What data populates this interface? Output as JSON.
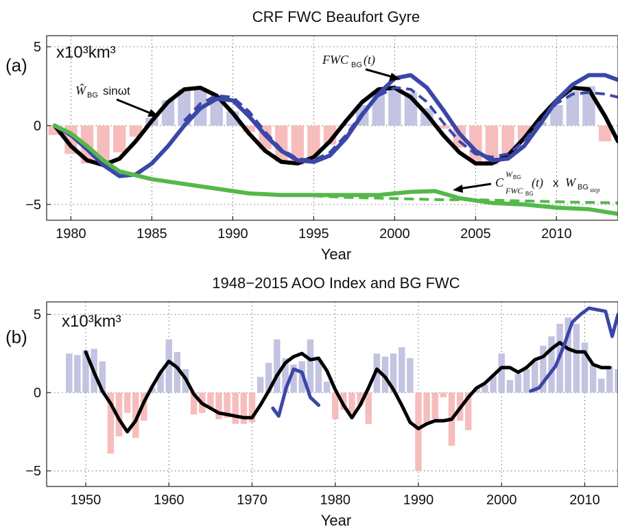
{
  "chart_data": [
    {
      "type": "line",
      "title": "CRF FWC Beaufort Gyre",
      "panel_label": "(a)",
      "unit_label": "x10³km³",
      "xlabel": "Year",
      "ylabel": "",
      "xlim": [
        1978.5,
        2013.8
      ],
      "ylim": [
        -6.0,
        5.7
      ],
      "xticks": [
        1980,
        1985,
        1990,
        1995,
        2000,
        2005,
        2010
      ],
      "yticks": [
        -5,
        0,
        5
      ],
      "grid": "dotted",
      "annotations": {
        "fwc": "FWC",
        "fwc_sub": "BG",
        "fwc_arg": "(t)",
        "sine_hat": "Ŵ",
        "sine_sub": "BG",
        "sine_fn": "sinωt",
        "crf_c": "C",
        "crf_sup_w": "W",
        "crf_sup_sub": "BG",
        "crf_sub": "FWC",
        "crf_sub_sub": "BG",
        "crf_arg": "(t)",
        "crf_times": "x",
        "crf_w": "W",
        "crf_w_sub": "BG",
        "crf_w_subsub": "step"
      },
      "bars": {
        "x": [
          1979,
          1980,
          1981,
          1982,
          1983,
          1984,
          1985,
          1986,
          1987,
          1988,
          1989,
          1990,
          1991,
          1992,
          1993,
          1994,
          1995,
          1996,
          1997,
          1998,
          1999,
          2000,
          2001,
          2002,
          2003,
          2004,
          2005,
          2006,
          2007,
          2008,
          2009,
          2010,
          2011,
          2012,
          2013
        ],
        "values": [
          -0.6,
          -1.8,
          -2.4,
          -2.4,
          -1.7,
          -0.7,
          0.5,
          1.6,
          2.3,
          2.4,
          1.9,
          0.9,
          -0.4,
          -1.5,
          -2.3,
          -2.5,
          -2.1,
          -1.2,
          0.1,
          1.3,
          2.2,
          2.5,
          2.1,
          1.1,
          -0.2,
          -1.4,
          -2.3,
          -2.5,
          -2.0,
          -1.1,
          0.2,
          1.3,
          2.2,
          2.5,
          -1.0
        ],
        "positive_color": "#c3c3e2",
        "negative_color": "#f7bdbd"
      },
      "series": [
        {
          "name": "sine",
          "color": "#000000",
          "style": "solid",
          "x": [
            1979,
            1980,
            1981,
            1982,
            1983,
            1984,
            1985,
            1986,
            1987,
            1988,
            1989,
            1990,
            1991,
            1992,
            1993,
            1994,
            1995,
            1996,
            1997,
            1998,
            1999,
            2000,
            2001,
            2002,
            2003,
            2004,
            2005,
            2006,
            2007,
            2008,
            2009,
            2010,
            2011,
            2012,
            2013,
            2013.8
          ],
          "values": [
            0,
            -1.3,
            -2.2,
            -2.5,
            -2.1,
            -1.0,
            0.3,
            1.5,
            2.3,
            2.4,
            1.9,
            0.8,
            -0.5,
            -1.6,
            -2.3,
            -2.4,
            -2.0,
            -1.0,
            0.3,
            1.5,
            2.3,
            2.4,
            1.8,
            0.7,
            -0.6,
            -1.7,
            -2.4,
            -2.4,
            -1.9,
            -0.8,
            0.5,
            1.6,
            2.4,
            2.3,
            0.6,
            -1.0
          ]
        },
        {
          "name": "FWC solid",
          "color": "#3a47a8",
          "style": "solid",
          "x": [
            1979,
            1980,
            1981,
            1982,
            1983,
            1984,
            1985,
            1986,
            1987,
            1988,
            1989,
            1990,
            1991,
            1992,
            1993,
            1994,
            1995,
            1996,
            1997,
            1998,
            1999,
            2000,
            2001,
            2002,
            2003,
            2004,
            2005,
            2006,
            2007,
            2008,
            2009,
            2010,
            2011,
            2012,
            2013,
            2013.8
          ],
          "values": [
            0,
            -0.6,
            -1.5,
            -2.5,
            -3.2,
            -3.1,
            -2.4,
            -1.3,
            0.0,
            1.1,
            1.7,
            1.6,
            0.6,
            -0.6,
            -1.6,
            -2.2,
            -2.3,
            -1.9,
            -0.8,
            0.7,
            2.0,
            3.0,
            3.2,
            2.4,
            1.0,
            -0.5,
            -1.6,
            -2.2,
            -2.1,
            -1.3,
            0.1,
            1.6,
            2.6,
            3.2,
            3.2,
            2.9
          ],
          "width": 6
        },
        {
          "name": "FWC dashed",
          "color": "#3a47a8",
          "style": "dashed",
          "x": [
            1987,
            1988,
            1989,
            1990,
            1991,
            1992,
            1993,
            1994,
            1995,
            1996,
            1997,
            1998,
            1999,
            2000,
            2001,
            2002,
            2003,
            2004,
            2005,
            2006,
            2007,
            2008,
            2009,
            2010,
            2011,
            2012,
            2013,
            2013.8
          ],
          "values": [
            0.3,
            1.4,
            1.9,
            1.8,
            0.9,
            -0.4,
            -1.5,
            -2.1,
            -2.2,
            -1.7,
            -0.6,
            0.8,
            1.9,
            2.4,
            2.3,
            1.5,
            0.2,
            -1.0,
            -1.8,
            -2.0,
            -1.8,
            -1.0,
            0.3,
            1.4,
            2.0,
            2.1,
            2.0,
            1.8
          ],
          "width": 4
        },
        {
          "name": "CRF solid",
          "color": "#55b84a",
          "style": "solid",
          "x": [
            1979,
            1980,
            1981,
            1982,
            1983,
            1985,
            1987,
            1989,
            1991,
            1993,
            1995,
            1997,
            1999,
            2001,
            2002.5,
            2004,
            2006,
            2008,
            2010,
            2012,
            2013.8
          ],
          "values": [
            0,
            -0.5,
            -1.3,
            -2.2,
            -2.9,
            -3.4,
            -3.7,
            -4.0,
            -4.3,
            -4.4,
            -4.4,
            -4.4,
            -4.4,
            -4.2,
            -4.15,
            -4.6,
            -4.9,
            -5.0,
            -5.2,
            -5.3,
            -5.6
          ],
          "width": 6
        },
        {
          "name": "CRF dashed",
          "color": "#55b84a",
          "style": "dashed",
          "x": [
            1995,
            1997,
            1999,
            2001,
            2003,
            2005,
            2007,
            2009,
            2011,
            2013.8
          ],
          "values": [
            -4.45,
            -4.55,
            -4.6,
            -4.65,
            -4.7,
            -4.7,
            -4.75,
            -4.8,
            -4.85,
            -4.9
          ],
          "width": 4
        }
      ]
    },
    {
      "type": "line",
      "title": "1948−2015 AOO Index and BG FWC",
      "panel_label": "(b)",
      "unit_label": "x10³km³",
      "xlabel": "Year",
      "ylabel": "",
      "xlim": [
        1945.3,
        2014
      ],
      "ylim": [
        -6.0,
        5.8
      ],
      "xticks": [
        1950,
        1960,
        1970,
        1980,
        1990,
        2000,
        2010
      ],
      "yticks": [
        -5,
        0,
        5
      ],
      "grid": "dotted",
      "bars": {
        "x": [
          1948,
          1949,
          1950,
          1951,
          1952,
          1953,
          1954,
          1955,
          1956,
          1957,
          1958,
          1959,
          1960,
          1961,
          1962,
          1963,
          1964,
          1965,
          1966,
          1967,
          1968,
          1969,
          1970,
          1971,
          1972,
          1973,
          1974,
          1975,
          1976,
          1977,
          1978,
          1979,
          1980,
          1981,
          1982,
          1983,
          1984,
          1985,
          1986,
          1987,
          1988,
          1989,
          1990,
          1991,
          1992,
          1993,
          1994,
          1995,
          1996,
          1997,
          1998,
          1999,
          2000,
          2001,
          2002,
          2003,
          2004,
          2005,
          2006,
          2007,
          2008,
          2009,
          2010,
          2011,
          2012,
          2013,
          2014
        ],
        "values": [
          2.5,
          2.4,
          2.7,
          2.8,
          2.0,
          -3.9,
          -2.8,
          -1.3,
          -2.9,
          -1.8,
          0.3,
          1.3,
          3.4,
          2.6,
          1.5,
          -1.4,
          -1.3,
          -1.0,
          -1.7,
          -1.6,
          -2.0,
          -2.0,
          -1.9,
          1.0,
          1.9,
          3.4,
          2.2,
          1.8,
          2.0,
          3.4,
          2.1,
          0.7,
          -1.7,
          -1.1,
          -1.3,
          -0.8,
          -2.0,
          2.5,
          2.3,
          2.5,
          2.9,
          2.2,
          -5.0,
          -2.0,
          -1.7,
          -0.3,
          -3.4,
          -1.8,
          -2.4,
          0.3,
          0.5,
          1.1,
          2.5,
          0.8,
          1.2,
          1.5,
          2.0,
          3.0,
          3.6,
          4.4,
          4.8,
          4.4,
          3.2,
          1.8,
          0.9,
          1.7,
          1.5
        ],
        "positive_color": "#c3c3e2",
        "negative_color": "#f7bdbd"
      },
      "series": [
        {
          "name": "AOO black",
          "color": "#000000",
          "style": "solid",
          "x": [
            1950,
            1951,
            1952,
            1953,
            1954,
            1955,
            1956,
            1957,
            1958,
            1959,
            1960,
            1961,
            1962,
            1963,
            1964,
            1965,
            1966,
            1967,
            1968,
            1969,
            1970,
            1971,
            1972,
            1973,
            1974,
            1975,
            1976,
            1977,
            1978,
            1979,
            1980,
            1981,
            1982,
            1983,
            1984,
            1985,
            1986,
            1987,
            1988,
            1989,
            1990,
            1991,
            1992,
            1993,
            1994,
            1995,
            1996,
            1997,
            1998,
            1999,
            2000,
            2001,
            2002,
            2003,
            2004,
            2005,
            2006,
            2007,
            2008,
            2009,
            2010,
            2011,
            2012,
            2013
          ],
          "values": [
            2.6,
            1.3,
            0.1,
            -0.7,
            -1.7,
            -2.5,
            -1.8,
            -0.6,
            0.4,
            1.3,
            2.0,
            1.6,
            0.9,
            -0.1,
            -0.7,
            -1.0,
            -1.3,
            -1.4,
            -1.5,
            -1.6,
            -1.6,
            -0.8,
            0.1,
            1.1,
            1.9,
            2.3,
            2.5,
            2.1,
            2.2,
            1.4,
            0.2,
            -0.8,
            -1.6,
            -0.8,
            0.3,
            1.5,
            1.0,
            0.2,
            -0.8,
            -1.9,
            -2.3,
            -2.0,
            -1.8,
            -1.8,
            -1.7,
            -1.0,
            -0.3,
            0.3,
            0.6,
            1.1,
            1.6,
            1.6,
            1.3,
            1.6,
            2.1,
            2.3,
            2.8,
            3.2,
            2.8,
            2.6,
            2.6,
            1.8,
            1.6,
            1.6
          ],
          "width": 5
        },
        {
          "name": "FWC blue early",
          "color": "#3a47a8",
          "style": "solid",
          "x": [
            1972.5,
            1973.2,
            1974.1,
            1975,
            1976,
            1977,
            1978
          ],
          "values": [
            -1.0,
            -1.5,
            0.3,
            1.5,
            1.3,
            -0.3,
            -0.8
          ],
          "width": 5
        },
        {
          "name": "FWC blue late",
          "color": "#3a47a8",
          "style": "solid",
          "x": [
            2003.5,
            2004.5,
            2005.5,
            2006.5,
            2007.5,
            2008.5,
            2009.5,
            2010.5,
            2011.5,
            2012.5,
            2013.3,
            2014
          ],
          "values": [
            0.1,
            0.3,
            1.0,
            1.7,
            3.0,
            4.5,
            5.0,
            5.4,
            5.3,
            5.2,
            3.6,
            5.0
          ],
          "width": 5
        }
      ]
    }
  ]
}
